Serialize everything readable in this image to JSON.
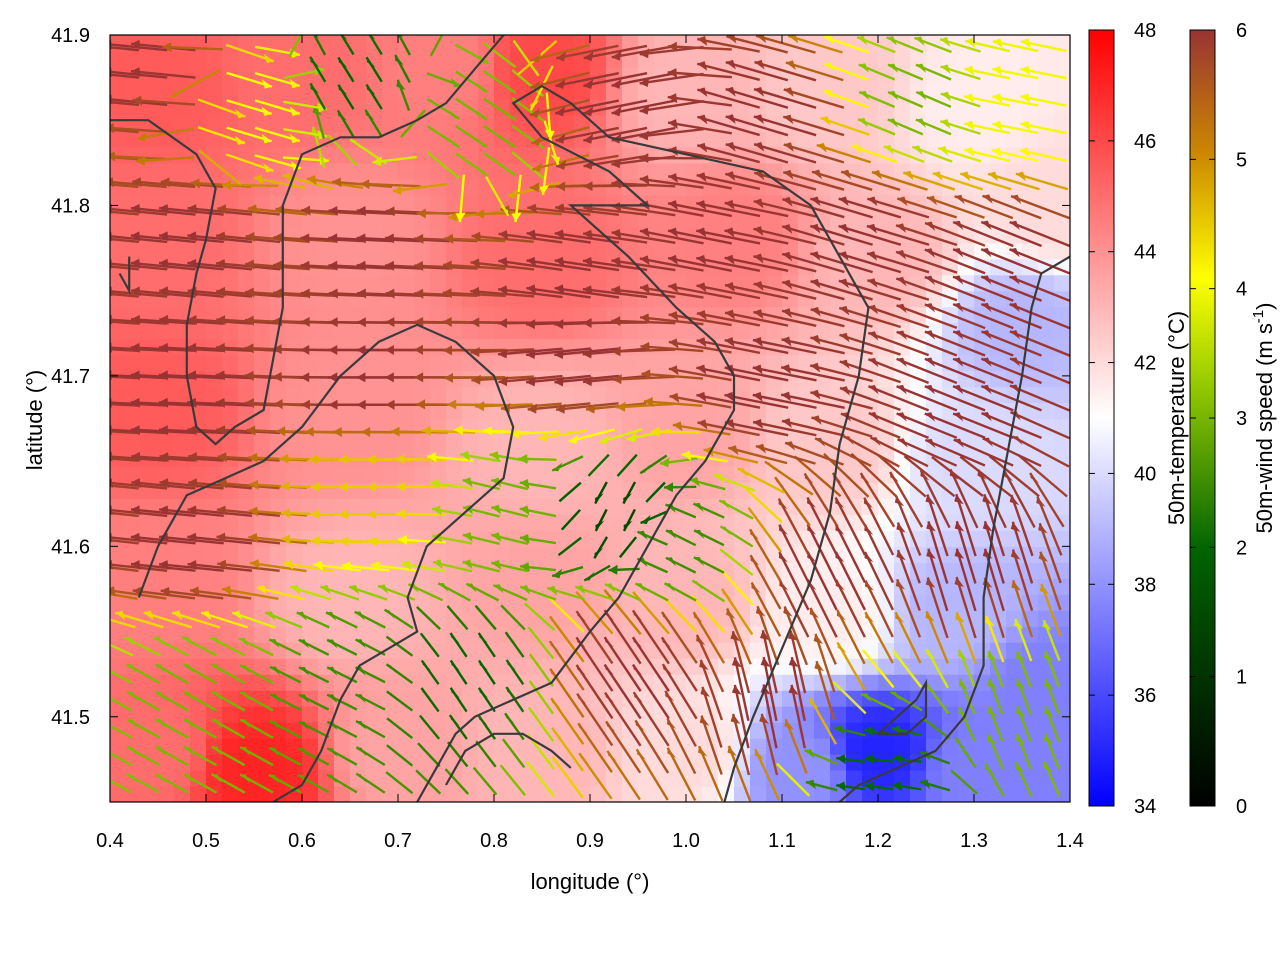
{
  "chart_data": {
    "type": "heatmap",
    "title": "",
    "xlabel": "longitude (°)",
    "ylabel": "latitude (°)",
    "xlim": [
      0.4,
      1.4
    ],
    "ylim": [
      41.45,
      41.9
    ],
    "xticks": [
      "0.4",
      "0.5",
      "0.6",
      "0.7",
      "0.8",
      "0.9",
      "1.0",
      "1.1",
      "1.2",
      "1.3",
      "1.4"
    ],
    "yticks": [
      "41.5",
      "41.6",
      "41.7",
      "41.8",
      "41.9"
    ],
    "grid": false,
    "temperature_scale": {
      "label": "50m-temperature (°C)",
      "range": [
        34,
        48
      ],
      "ticks": [
        "34",
        "36",
        "38",
        "40",
        "42",
        "44",
        "46",
        "48"
      ],
      "colors": {
        "low": "#0000ff",
        "mid": "#ffffff",
        "high": "#ff0000"
      }
    },
    "wind_scale": {
      "label": "50m-wind speed (m s",
      "label_exponent": "-1",
      "label_close": ")",
      "range": [
        0,
        6
      ],
      "ticks": [
        "0",
        "1",
        "2",
        "3",
        "4",
        "5",
        "6"
      ],
      "colors": [
        "#000000",
        "#006400",
        "#9acd00",
        "#ffff00",
        "#cc8800",
        "#993333"
      ]
    },
    "temperature_field": [
      {
        "lon": 0.45,
        "lat": 41.87,
        "t": 45.5
      },
      {
        "lon": 0.6,
        "lat": 41.88,
        "t": 45.0
      },
      {
        "lon": 0.75,
        "lat": 41.88,
        "t": 44.5
      },
      {
        "lon": 0.85,
        "lat": 41.88,
        "t": 46.0
      },
      {
        "lon": 1.0,
        "lat": 41.87,
        "t": 43.0
      },
      {
        "lon": 1.15,
        "lat": 41.87,
        "t": 42.5
      },
      {
        "lon": 1.3,
        "lat": 41.86,
        "t": 41.5
      },
      {
        "lon": 1.38,
        "lat": 41.8,
        "t": 42.0
      },
      {
        "lon": 0.45,
        "lat": 41.78,
        "t": 45.0
      },
      {
        "lon": 0.65,
        "lat": 41.78,
        "t": 44.0
      },
      {
        "lon": 0.85,
        "lat": 41.77,
        "t": 45.0
      },
      {
        "lon": 1.05,
        "lat": 41.78,
        "t": 44.5
      },
      {
        "lon": 1.2,
        "lat": 41.77,
        "t": 43.0
      },
      {
        "lon": 1.35,
        "lat": 41.73,
        "t": 39.0
      },
      {
        "lon": 0.45,
        "lat": 41.68,
        "t": 45.5
      },
      {
        "lon": 0.65,
        "lat": 41.68,
        "t": 44.0
      },
      {
        "lon": 0.85,
        "lat": 41.66,
        "t": 43.0
      },
      {
        "lon": 1.0,
        "lat": 41.67,
        "t": 43.5
      },
      {
        "lon": 1.15,
        "lat": 41.66,
        "t": 42.5
      },
      {
        "lon": 1.3,
        "lat": 41.65,
        "t": 40.0
      },
      {
        "lon": 0.45,
        "lat": 41.58,
        "t": 44.5
      },
      {
        "lon": 0.65,
        "lat": 41.57,
        "t": 43.0
      },
      {
        "lon": 0.85,
        "lat": 41.58,
        "t": 43.5
      },
      {
        "lon": 1.0,
        "lat": 41.57,
        "t": 43.0
      },
      {
        "lon": 1.15,
        "lat": 41.56,
        "t": 41.5
      },
      {
        "lon": 1.28,
        "lat": 41.56,
        "t": 39.0
      },
      {
        "lon": 1.37,
        "lat": 41.52,
        "t": 37.5
      },
      {
        "lon": 0.45,
        "lat": 41.48,
        "t": 45.0
      },
      {
        "lon": 0.55,
        "lat": 41.47,
        "t": 47.0
      },
      {
        "lon": 0.7,
        "lat": 41.48,
        "t": 43.5
      },
      {
        "lon": 0.85,
        "lat": 41.48,
        "t": 43.0
      },
      {
        "lon": 1.0,
        "lat": 41.48,
        "t": 42.0
      },
      {
        "lon": 1.12,
        "lat": 41.47,
        "t": 38.0
      },
      {
        "lon": 1.2,
        "lat": 41.48,
        "t": 35.0
      },
      {
        "lon": 1.3,
        "lat": 41.47,
        "t": 37.5
      }
    ],
    "wind_regions": [
      {
        "lon": 0.45,
        "lat": 41.88,
        "speed": 6,
        "u": -1,
        "v": 0.1
      },
      {
        "lon": 0.55,
        "lat": 41.86,
        "speed": 4,
        "u": 1,
        "v": -0.3
      },
      {
        "lon": 0.65,
        "lat": 41.87,
        "speed": 2,
        "u": -0.5,
        "v": 0.8
      },
      {
        "lon": 0.78,
        "lat": 41.85,
        "speed": 3,
        "u": 0.6,
        "v": -0.4
      },
      {
        "lon": 0.95,
        "lat": 41.86,
        "speed": 6,
        "u": -1,
        "v": -0.2
      },
      {
        "lon": 1.1,
        "lat": 41.85,
        "speed": 6,
        "u": -1,
        "v": 0.3
      },
      {
        "lon": 1.25,
        "lat": 41.86,
        "speed": 3,
        "u": -0.7,
        "v": 0.3
      },
      {
        "lon": 1.35,
        "lat": 41.86,
        "speed": 4,
        "u": -1,
        "v": 0.2
      },
      {
        "lon": 0.5,
        "lat": 41.78,
        "speed": 6,
        "u": -1,
        "v": 0.1
      },
      {
        "lon": 0.7,
        "lat": 41.78,
        "speed": 6,
        "u": -1,
        "v": 0.05
      },
      {
        "lon": 0.9,
        "lat": 41.76,
        "speed": 6,
        "u": -1,
        "v": 0.15
      },
      {
        "lon": 1.05,
        "lat": 41.78,
        "speed": 6,
        "u": -1,
        "v": 0.2
      },
      {
        "lon": 1.2,
        "lat": 41.78,
        "speed": 6,
        "u": -1,
        "v": 0.3
      },
      {
        "lon": 1.35,
        "lat": 41.76,
        "speed": 6,
        "u": -1,
        "v": 0.4
      },
      {
        "lon": 0.5,
        "lat": 41.69,
        "speed": 6,
        "u": -1,
        "v": 0.05
      },
      {
        "lon": 0.7,
        "lat": 41.7,
        "speed": 6,
        "u": -1,
        "v": 0.0
      },
      {
        "lon": 0.9,
        "lat": 41.71,
        "speed": 6,
        "u": -1,
        "v": -0.1
      },
      {
        "lon": 1.1,
        "lat": 41.69,
        "speed": 6,
        "u": -1,
        "v": 0.2
      },
      {
        "lon": 1.3,
        "lat": 41.68,
        "speed": 6,
        "u": -1,
        "v": 0.4
      },
      {
        "lon": 0.5,
        "lat": 41.6,
        "speed": 6,
        "u": -1,
        "v": 0.1
      },
      {
        "lon": 0.7,
        "lat": 41.63,
        "speed": 4.5,
        "u": -1,
        "v": 0.0
      },
      {
        "lon": 0.82,
        "lat": 41.62,
        "speed": 3,
        "u": -0.8,
        "v": 0.2
      },
      {
        "lon": 0.93,
        "lat": 41.62,
        "speed": 1.5,
        "u": -0.3,
        "v": -0.6
      },
      {
        "lon": 1.0,
        "lat": 41.6,
        "speed": 2.5,
        "u": -0.6,
        "v": 0.3
      },
      {
        "lon": 1.15,
        "lat": 41.58,
        "speed": 6,
        "u": -0.5,
        "v": 1
      },
      {
        "lon": 1.3,
        "lat": 41.58,
        "speed": 6,
        "u": -0.3,
        "v": 1
      },
      {
        "lon": 0.5,
        "lat": 41.51,
        "speed": 3,
        "u": -0.7,
        "v": 0.4
      },
      {
        "lon": 0.65,
        "lat": 41.52,
        "speed": 2.5,
        "u": -0.6,
        "v": 0.3
      },
      {
        "lon": 0.78,
        "lat": 41.52,
        "speed": 2,
        "u": -0.4,
        "v": 0.6
      },
      {
        "lon": 0.95,
        "lat": 41.52,
        "speed": 6,
        "u": -0.6,
        "v": 0.9
      },
      {
        "lon": 1.1,
        "lat": 41.5,
        "speed": 6,
        "u": -0.2,
        "v": 1
      },
      {
        "lon": 1.2,
        "lat": 41.47,
        "speed": 2,
        "u": -0.8,
        "v": 0.1
      },
      {
        "lon": 1.35,
        "lat": 41.5,
        "speed": 3,
        "u": -0.3,
        "v": 0.8
      }
    ],
    "contours": [
      [
        [
          0.4,
          41.85
        ],
        [
          0.44,
          41.85
        ],
        [
          0.49,
          41.83
        ],
        [
          0.51,
          41.81
        ],
        [
          0.5,
          41.78
        ],
        [
          0.49,
          41.76
        ],
        [
          0.48,
          41.73
        ],
        [
          0.48,
          41.7
        ],
        [
          0.49,
          41.67
        ],
        [
          0.51,
          41.66
        ],
        [
          0.53,
          41.67
        ],
        [
          0.56,
          41.68
        ],
        [
          0.57,
          41.71
        ],
        [
          0.58,
          41.74
        ],
        [
          0.58,
          41.77
        ],
        [
          0.58,
          41.8
        ],
        [
          0.6,
          41.83
        ],
        [
          0.64,
          41.84
        ],
        [
          0.68,
          41.84
        ],
        [
          0.72,
          41.85
        ],
        [
          0.75,
          41.86
        ],
        [
          0.78,
          41.88
        ],
        [
          0.81,
          41.9
        ]
      ],
      [
        [
          0.43,
          41.57
        ],
        [
          0.45,
          41.6
        ],
        [
          0.48,
          41.63
        ],
        [
          0.52,
          41.64
        ],
        [
          0.56,
          41.65
        ],
        [
          0.6,
          41.67
        ],
        [
          0.64,
          41.7
        ],
        [
          0.68,
          41.72
        ],
        [
          0.72,
          41.73
        ],
        [
          0.76,
          41.72
        ],
        [
          0.8,
          41.7
        ],
        [
          0.82,
          41.67
        ],
        [
          0.81,
          41.64
        ],
        [
          0.77,
          41.62
        ],
        [
          0.73,
          41.6
        ],
        [
          0.71,
          41.57
        ],
        [
          0.72,
          41.55
        ],
        [
          0.69,
          41.54
        ],
        [
          0.66,
          41.53
        ],
        [
          0.64,
          41.51
        ],
        [
          0.62,
          41.48
        ],
        [
          0.6,
          41.46
        ],
        [
          0.57,
          41.45
        ]
      ],
      [
        [
          0.75,
          41.46
        ],
        [
          0.77,
          41.48
        ],
        [
          0.8,
          41.49
        ],
        [
          0.83,
          41.49
        ],
        [
          0.86,
          41.48
        ],
        [
          0.88,
          41.47
        ]
      ],
      [
        [
          0.72,
          41.45
        ],
        [
          0.74,
          41.47
        ],
        [
          0.76,
          41.49
        ],
        [
          0.78,
          41.5
        ],
        [
          0.82,
          41.51
        ],
        [
          0.86,
          41.52
        ],
        [
          0.9,
          41.55
        ],
        [
          0.93,
          41.57
        ],
        [
          0.96,
          41.6
        ],
        [
          0.99,
          41.63
        ],
        [
          1.02,
          41.65
        ],
        [
          1.05,
          41.68
        ],
        [
          1.05,
          41.7
        ],
        [
          1.03,
          41.72
        ],
        [
          0.99,
          41.74
        ],
        [
          0.94,
          41.77
        ],
        [
          0.9,
          41.79
        ],
        [
          0.88,
          41.8
        ],
        [
          0.91,
          41.8
        ],
        [
          0.96,
          41.8
        ],
        [
          0.92,
          41.82
        ],
        [
          0.85,
          41.84
        ],
        [
          0.82,
          41.86
        ],
        [
          0.85,
          41.87
        ],
        [
          0.88,
          41.86
        ],
        [
          0.92,
          41.84
        ],
        [
          1.0,
          41.83
        ],
        [
          1.08,
          41.82
        ],
        [
          1.13,
          41.8
        ],
        [
          1.16,
          41.77
        ],
        [
          1.19,
          41.74
        ],
        [
          1.18,
          41.7
        ],
        [
          1.16,
          41.66
        ],
        [
          1.15,
          41.62
        ],
        [
          1.13,
          41.58
        ],
        [
          1.1,
          41.54
        ],
        [
          1.07,
          41.5
        ],
        [
          1.05,
          41.47
        ],
        [
          1.04,
          41.45
        ]
      ],
      [
        [
          1.16,
          41.45
        ],
        [
          1.18,
          41.46
        ],
        [
          1.22,
          41.47
        ],
        [
          1.26,
          41.48
        ],
        [
          1.29,
          41.5
        ],
        [
          1.31,
          41.53
        ],
        [
          1.31,
          41.57
        ],
        [
          1.32,
          41.61
        ],
        [
          1.33,
          41.64
        ],
        [
          1.34,
          41.67
        ],
        [
          1.35,
          41.7
        ],
        [
          1.36,
          41.74
        ],
        [
          1.37,
          41.76
        ],
        [
          1.4,
          41.77
        ]
      ],
      [
        [
          1.2,
          41.49
        ],
        [
          1.23,
          41.49
        ],
        [
          1.25,
          41.5
        ],
        [
          1.25,
          41.52
        ],
        [
          1.24,
          41.51
        ],
        [
          1.22,
          41.5
        ],
        [
          1.2,
          41.49
        ]
      ],
      [
        [
          0.41,
          41.76
        ],
        [
          0.42,
          41.75
        ],
        [
          0.42,
          41.77
        ]
      ]
    ]
  }
}
